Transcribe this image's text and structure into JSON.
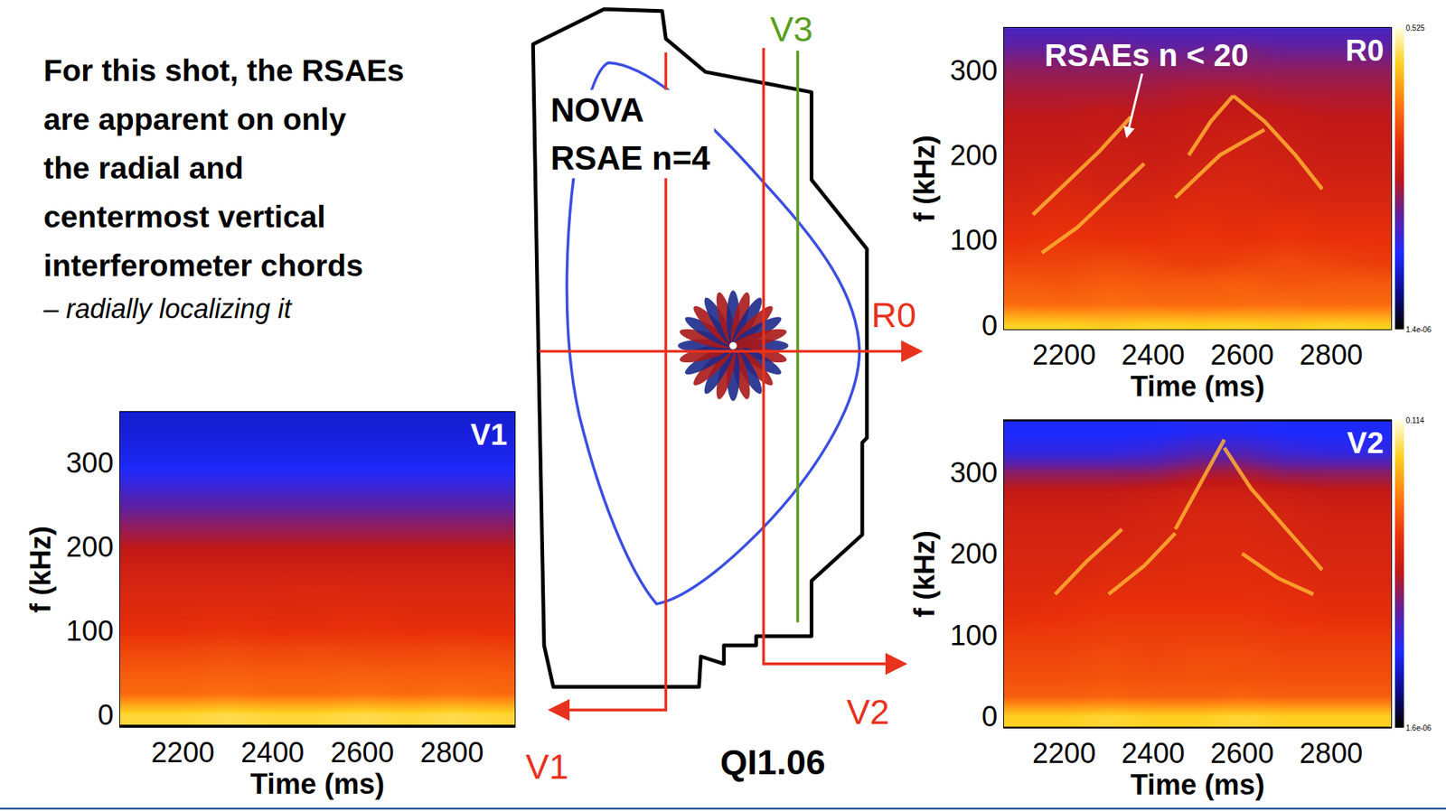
{
  "statement": [
    "For this shot, the RSAEs",
    "are apparent on only",
    "the radial and",
    "centermost vertical",
    "interferometer chords"
  ],
  "statement_note": "– radially localizing it",
  "diagram": {
    "mode_label": [
      "NOVA",
      "RSAE n=4"
    ],
    "shot_label": "QI1.06",
    "chords": [
      {
        "label": "V1",
        "color": "#e8321e"
      },
      {
        "label": "V2",
        "color": "#e8321e"
      },
      {
        "label": "V3",
        "color": "#5a9e1e"
      },
      {
        "label": "R0",
        "color": "#e8321e"
      }
    ]
  },
  "chart_data": [
    {
      "type": "heatmap",
      "title": "R0",
      "xlabel": "Time (ms)",
      "ylabel": "f (kHz)",
      "xlim": [
        2065,
        2935
      ],
      "ylim": [
        -5,
        350
      ],
      "xticks": [
        2200,
        2400,
        2600,
        2800
      ],
      "yticks": [
        0,
        100,
        200,
        300
      ],
      "x": [
        2100,
        2200,
        2300,
        2400,
        2500,
        2600,
        2700,
        2800,
        2900
      ],
      "y": [
        0,
        25,
        50,
        75,
        100,
        125,
        150,
        175,
        200,
        225,
        250,
        275,
        300,
        325,
        350
      ],
      "cells": [
        [
          0.12,
          0.12,
          0.1,
          0.12,
          0.11,
          0.12,
          0.1,
          0.12,
          0.11
        ],
        [
          0.015,
          0.014,
          0.016,
          0.015,
          0.014,
          0.015,
          0.016,
          0.014,
          0.015
        ],
        [
          0.01,
          0.009,
          0.011,
          0.01,
          0.01,
          0.011,
          0.009,
          0.01,
          0.01
        ],
        [
          0.006,
          0.006,
          0.007,
          0.006,
          0.005,
          0.006,
          0.007,
          0.006,
          0.005
        ],
        [
          0.004,
          0.0045,
          0.004,
          0.004,
          0.0045,
          0.004,
          0.0045,
          0.004,
          0.004
        ],
        [
          0.003,
          0.0035,
          0.003,
          0.003,
          0.0035,
          0.003,
          0.0035,
          0.003,
          0.003
        ],
        [
          0.002,
          0.0025,
          0.002,
          0.002,
          0.0025,
          0.0025,
          0.002,
          0.002,
          0.002
        ],
        [
          0.0015,
          0.0018,
          0.0015,
          0.0015,
          0.0018,
          0.002,
          0.0018,
          0.0015,
          0.0015
        ],
        [
          0.0012,
          0.0012,
          0.0014,
          0.0012,
          0.0014,
          0.0016,
          0.0014,
          0.0012,
          0.0012
        ],
        [
          0.001,
          0.001,
          0.0011,
          0.001,
          0.0012,
          0.0014,
          0.0012,
          0.001,
          0.001
        ],
        [
          0.0008,
          0.0008,
          0.0009,
          0.0008,
          0.0009,
          0.001,
          0.0009,
          0.0008,
          0.0008
        ],
        [
          0.0006,
          0.0006,
          0.0006,
          0.0006,
          0.0007,
          0.0007,
          0.0006,
          0.0006,
          0.0006
        ],
        [
          0.0004,
          0.0004,
          0.0004,
          0.0004,
          0.0004,
          0.0004,
          0.0004,
          0.0004,
          0.0004
        ],
        [
          0.0002,
          0.0002,
          0.00025,
          0.0002,
          0.0002,
          0.00025,
          0.0002,
          0.0002,
          0.0002
        ],
        [
          0.0001,
          0.0001,
          0.0001,
          0.0001,
          0.0001,
          0.0001,
          0.0001,
          0.0001,
          0.0001
        ]
      ],
      "colorbar": {
        "range": [
          1.4e-06,
          0.525
        ],
        "ticks": [
          {
            "value": 1.4e-06,
            "label": "1.4e-06"
          },
          0.525
        ]
      },
      "series": [
        {
          "color": "#ffb030",
          "x": [
            2130,
            2200,
            2280,
            2350
          ],
          "values": [
            130,
            165,
            205,
            245
          ]
        },
        {
          "color": "#ffb030",
          "x": [
            2150,
            2230,
            2300,
            2380
          ],
          "values": [
            85,
            115,
            150,
            190
          ]
        },
        {
          "color": "#ffb030",
          "x": [
            2480,
            2530,
            2580
          ],
          "values": [
            200,
            240,
            270
          ]
        },
        {
          "color": "#ffb030",
          "x": [
            2580,
            2650,
            2720,
            2780
          ],
          "values": [
            270,
            240,
            200,
            160
          ]
        },
        {
          "color": "#ffb030",
          "x": [
            2450,
            2550,
            2650
          ],
          "values": [
            150,
            200,
            230
          ]
        }
      ],
      "annotations": [
        {
          "text": "RSAEs n < 20",
          "x": 2340,
          "y": 220
        }
      ]
    },
    {
      "type": "heatmap",
      "title": "V1",
      "xlabel": "Time (ms)",
      "ylabel": "f (kHz)",
      "xlim": [
        2060,
        2940
      ],
      "ylim": [
        -15,
        360
      ],
      "xticks": [
        2200,
        2400,
        2600,
        2800
      ],
      "yticks": [
        0,
        100,
        200,
        300
      ],
      "x": [
        2100,
        2200,
        2300,
        2400,
        2500,
        2600,
        2700,
        2800,
        2900
      ],
      "y": [
        0,
        25,
        50,
        75,
        100,
        125,
        150,
        175,
        200,
        225,
        250,
        275,
        300,
        325,
        350
      ],
      "cells": [
        [
          0.03,
          0.03,
          0.035,
          0.03,
          0.03,
          0.035,
          0.03,
          0.035,
          0.03
        ],
        [
          0.004,
          0.004,
          0.0045,
          0.004,
          0.004,
          0.0045,
          0.004,
          0.0045,
          0.004
        ],
        [
          0.003,
          0.003,
          0.0032,
          0.003,
          0.003,
          0.0032,
          0.003,
          0.003,
          0.003
        ],
        [
          0.002,
          0.002,
          0.0022,
          0.002,
          0.0022,
          0.002,
          0.002,
          0.0022,
          0.002
        ],
        [
          0.0012,
          0.0012,
          0.0013,
          0.0012,
          0.0012,
          0.0013,
          0.0012,
          0.0012,
          0.0012
        ],
        [
          0.0009,
          0.0009,
          0.001,
          0.0009,
          0.0009,
          0.001,
          0.0009,
          0.0009,
          0.0009
        ],
        [
          0.0007,
          0.0007,
          0.0007,
          0.0007,
          0.0008,
          0.0007,
          0.0007,
          0.0007,
          0.0007
        ],
        [
          0.0005,
          0.0005,
          0.0005,
          0.0005,
          0.0005,
          0.0005,
          0.0005,
          0.0005,
          0.0005
        ],
        [
          0.0003,
          0.0003,
          0.0003,
          0.0003,
          0.0003,
          0.0003,
          0.0003,
          0.0003,
          0.0003
        ],
        [
          0.00015,
          0.00015,
          0.00015,
          0.00015,
          0.00015,
          0.00015,
          0.00015,
          0.00015,
          0.00015
        ],
        [
          7e-05,
          7e-05,
          7e-05,
          7e-05,
          7e-05,
          7e-05,
          7e-05,
          7e-05,
          7e-05
        ],
        [
          3e-05,
          3e-05,
          3e-05,
          3e-05,
          3e-05,
          3e-05,
          3e-05,
          3e-05,
          3e-05
        ],
        [
          1.5e-05,
          1.5e-05,
          1.5e-05,
          1.5e-05,
          1.5e-05,
          1.5e-05,
          1.5e-05,
          1.5e-05,
          1.5e-05
        ],
        [
          1.2e-05,
          1.2e-05,
          1.2e-05,
          1.2e-05,
          1.2e-05,
          1.2e-05,
          1.2e-05,
          1.2e-05,
          1.2e-05
        ],
        [
          1e-05,
          1e-05,
          1e-05,
          1e-05,
          1e-05,
          1e-05,
          1e-05,
          1e-05,
          1e-05
        ]
      ],
      "color_range": [
        1e-06,
        0.1
      ]
    },
    {
      "type": "heatmap",
      "title": "V2",
      "xlabel": "Time (ms)",
      "ylabel": "f (kHz)",
      "xlim": [
        2065,
        2935
      ],
      "ylim": [
        -14,
        364
      ],
      "xticks": [
        2200,
        2400,
        2600,
        2800
      ],
      "yticks": [
        0,
        100,
        200,
        300
      ],
      "x": [
        2100,
        2200,
        2300,
        2400,
        2500,
        2600,
        2700,
        2800,
        2900
      ],
      "y": [
        0,
        25,
        50,
        75,
        100,
        125,
        150,
        175,
        200,
        225,
        250,
        275,
        300,
        325,
        350
      ],
      "cells": [
        [
          0.03,
          0.03,
          0.035,
          0.03,
          0.03,
          0.035,
          0.03,
          0.03,
          0.03
        ],
        [
          0.004,
          0.004,
          0.0045,
          0.004,
          0.004,
          0.0045,
          0.004,
          0.004,
          0.004
        ],
        [
          0.003,
          0.003,
          0.0032,
          0.003,
          0.0032,
          0.003,
          0.003,
          0.003,
          0.003
        ],
        [
          0.0025,
          0.0025,
          0.0028,
          0.0025,
          0.0028,
          0.0028,
          0.0025,
          0.0025,
          0.0025
        ],
        [
          0.002,
          0.002,
          0.0022,
          0.0022,
          0.0022,
          0.0022,
          0.002,
          0.002,
          0.002
        ],
        [
          0.0015,
          0.0016,
          0.0018,
          0.0018,
          0.0018,
          0.0018,
          0.0016,
          0.0015,
          0.0015
        ],
        [
          0.0012,
          0.0013,
          0.0015,
          0.0015,
          0.0015,
          0.0015,
          0.0014,
          0.0012,
          0.0012
        ],
        [
          0.001,
          0.001,
          0.0012,
          0.0012,
          0.0013,
          0.0013,
          0.0012,
          0.001,
          0.001
        ],
        [
          0.0009,
          0.0009,
          0.001,
          0.001,
          0.0011,
          0.0011,
          0.001,
          0.0009,
          0.0009
        ],
        [
          0.0008,
          0.0008,
          0.0008,
          0.0009,
          0.001,
          0.001,
          0.0009,
          0.0008,
          0.0008
        ],
        [
          0.0007,
          0.0007,
          0.0007,
          0.0008,
          0.0009,
          0.0009,
          0.0008,
          0.0007,
          0.0007
        ],
        [
          0.0005,
          0.0005,
          0.0005,
          0.0006,
          0.0007,
          0.0007,
          0.0006,
          0.0005,
          0.0005
        ],
        [
          0.0002,
          0.0002,
          0.0002,
          0.0002,
          0.0003,
          0.0003,
          0.0002,
          0.0002,
          0.0002
        ],
        [
          4e-05,
          4e-05,
          4e-05,
          5e-05,
          8e-05,
          8e-05,
          5e-05,
          4e-05,
          4e-05
        ],
        [
          2.5e-05,
          2.5e-05,
          2.5e-05,
          2.5e-05,
          3e-05,
          3e-05,
          2.5e-05,
          2.5e-05,
          2.5e-05
        ]
      ],
      "colorbar": {
        "range": [
          1.6e-06,
          0.114
        ],
        "ticks": [
          {
            "value": 1.6e-06,
            "label": "1.6e-06"
          },
          0.114
        ]
      },
      "series": [
        {
          "color": "#ffb030",
          "x": [
            2180,
            2250,
            2330
          ],
          "values": [
            150,
            190,
            230
          ]
        },
        {
          "color": "#ffb030",
          "x": [
            2300,
            2380,
            2450
          ],
          "values": [
            150,
            185,
            225
          ]
        },
        {
          "color": "#ffb030",
          "x": [
            2450,
            2510,
            2560
          ],
          "values": [
            230,
            290,
            340
          ]
        },
        {
          "color": "#ffb030",
          "x": [
            2560,
            2620,
            2700,
            2780
          ],
          "values": [
            330,
            280,
            230,
            180
          ]
        },
        {
          "color": "#ffb030",
          "x": [
            2600,
            2680,
            2760
          ],
          "values": [
            200,
            170,
            150
          ]
        }
      ]
    }
  ]
}
